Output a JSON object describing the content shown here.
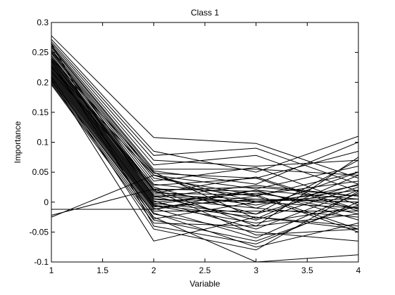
{
  "chart_data": {
    "type": "line",
    "title": "Class 1",
    "xlabel": "Variable",
    "ylabel": "Importance",
    "xlim": [
      1,
      4
    ],
    "ylim": [
      -0.1,
      0.3
    ],
    "x": [
      1,
      2,
      3,
      4
    ],
    "x_ticks": [
      1,
      1.5,
      2,
      2.5,
      3,
      3.5,
      4
    ],
    "x_tick_labels": [
      "1",
      "1.5",
      "2",
      "2.5",
      "3",
      "3.5",
      "4"
    ],
    "y_ticks": [
      -0.1,
      -0.05,
      0,
      0.05,
      0.1,
      0.15,
      0.2,
      0.25,
      0.3
    ],
    "y_tick_labels": [
      "-0.1",
      "-0.05",
      "0",
      "0.05",
      "0.1",
      "0.15",
      "0.2",
      "0.25",
      "0.3"
    ],
    "grid": false,
    "line_color": "#000000",
    "series": [
      {
        "values": [
          0.278,
          0.108,
          0.098,
          0.04
        ]
      },
      {
        "values": [
          0.272,
          0.085,
          0.05,
          0.11
        ]
      },
      {
        "values": [
          0.268,
          0.078,
          0.09,
          0.03
        ]
      },
      {
        "values": [
          0.265,
          0.07,
          0.06,
          0.07
        ]
      },
      {
        "values": [
          0.262,
          0.062,
          0.078,
          0.018
        ]
      },
      {
        "values": [
          0.26,
          0.055,
          0.055,
          0.045
        ]
      },
      {
        "values": [
          0.258,
          0.052,
          0.03,
          0.1
        ]
      },
      {
        "values": [
          0.255,
          0.048,
          0.04,
          0.085
        ]
      },
      {
        "values": [
          0.252,
          0.045,
          0.022,
          0.06
        ]
      },
      {
        "values": [
          0.25,
          0.04,
          0.012,
          0.035
        ]
      },
      {
        "values": [
          0.248,
          0.035,
          0.058,
          -0.005
        ]
      },
      {
        "values": [
          0.245,
          0.03,
          0.01,
          0.05
        ]
      },
      {
        "values": [
          0.242,
          0.025,
          -0.02,
          0.07
        ]
      },
      {
        "values": [
          0.24,
          0.022,
          0.018,
          -0.02
        ]
      },
      {
        "values": [
          0.238,
          0.02,
          0.025,
          0.01
        ]
      },
      {
        "values": [
          0.236,
          0.018,
          -0.005,
          0.028
        ]
      },
      {
        "values": [
          0.234,
          0.015,
          0.012,
          -0.045
        ]
      },
      {
        "values": [
          0.232,
          0.012,
          0.005,
          0.0
        ]
      },
      {
        "values": [
          0.23,
          0.01,
          -0.03,
          0.025
        ]
      },
      {
        "values": [
          0.228,
          0.008,
          0.028,
          0.01
        ]
      },
      {
        "values": [
          0.226,
          0.006,
          -0.01,
          -0.025
        ]
      },
      {
        "values": [
          0.224,
          0.004,
          0.002,
          0.005
        ]
      },
      {
        "values": [
          0.222,
          0.002,
          -0.045,
          0.02
        ]
      },
      {
        "values": [
          0.22,
          0.0,
          0.015,
          -0.01
        ]
      },
      {
        "values": [
          0.218,
          -0.002,
          -0.02,
          0.03
        ]
      },
      {
        "values": [
          0.216,
          -0.004,
          0.02,
          -0.03
        ]
      },
      {
        "values": [
          0.214,
          -0.006,
          -0.035,
          -0.008
        ]
      },
      {
        "values": [
          0.212,
          -0.008,
          0.005,
          0.0
        ]
      },
      {
        "values": [
          0.21,
          -0.01,
          -0.06,
          0.015
        ]
      },
      {
        "values": [
          0.208,
          -0.012,
          0.01,
          -0.05
        ]
      },
      {
        "values": [
          0.206,
          -0.015,
          -0.015,
          -0.015
        ]
      },
      {
        "values": [
          0.204,
          -0.018,
          -0.075,
          -0.035
        ]
      },
      {
        "values": [
          0.202,
          -0.02,
          -0.05,
          -0.065
        ]
      },
      {
        "values": [
          0.2,
          -0.025,
          -0.1,
          -0.088
        ]
      },
      {
        "values": [
          0.198,
          -0.03,
          -0.065,
          -0.005
        ]
      },
      {
        "values": [
          0.196,
          -0.035,
          -0.04,
          -0.02
        ]
      },
      {
        "values": [
          0.21,
          -0.045,
          -0.08,
          0.018
        ]
      },
      {
        "values": [
          0.205,
          -0.065,
          -0.025,
          -0.04
        ]
      },
      {
        "values": [
          0.225,
          0.045,
          0.0,
          -0.01
        ]
      },
      {
        "values": [
          0.24,
          0.05,
          -0.028,
          0.045
        ]
      },
      {
        "values": [
          0.255,
          0.02,
          -0.055,
          -0.045
        ]
      },
      {
        "values": [
          0.265,
          -0.04,
          -0.07,
          0.0
        ]
      },
      {
        "values": [
          0.235,
          -0.028,
          0.0,
          0.02
        ]
      },
      {
        "values": [
          0.218,
          0.028,
          0.04,
          -0.015
        ]
      },
      {
        "values": [
          0.245,
          0.01,
          0.0,
          0.012
        ]
      },
      {
        "values": [
          -0.012,
          -0.012,
          0.02,
          0.005
        ]
      },
      {
        "values": [
          -0.025,
          0.045,
          -0.01,
          0.05
        ]
      },
      {
        "values": [
          -0.022,
          0.022,
          -0.04,
          0.075
        ]
      },
      {
        "values": [
          0.228,
          -0.005,
          -0.025,
          -0.045
        ]
      },
      {
        "values": [
          0.238,
          0.015,
          0.042,
          -0.012
        ]
      }
    ]
  }
}
